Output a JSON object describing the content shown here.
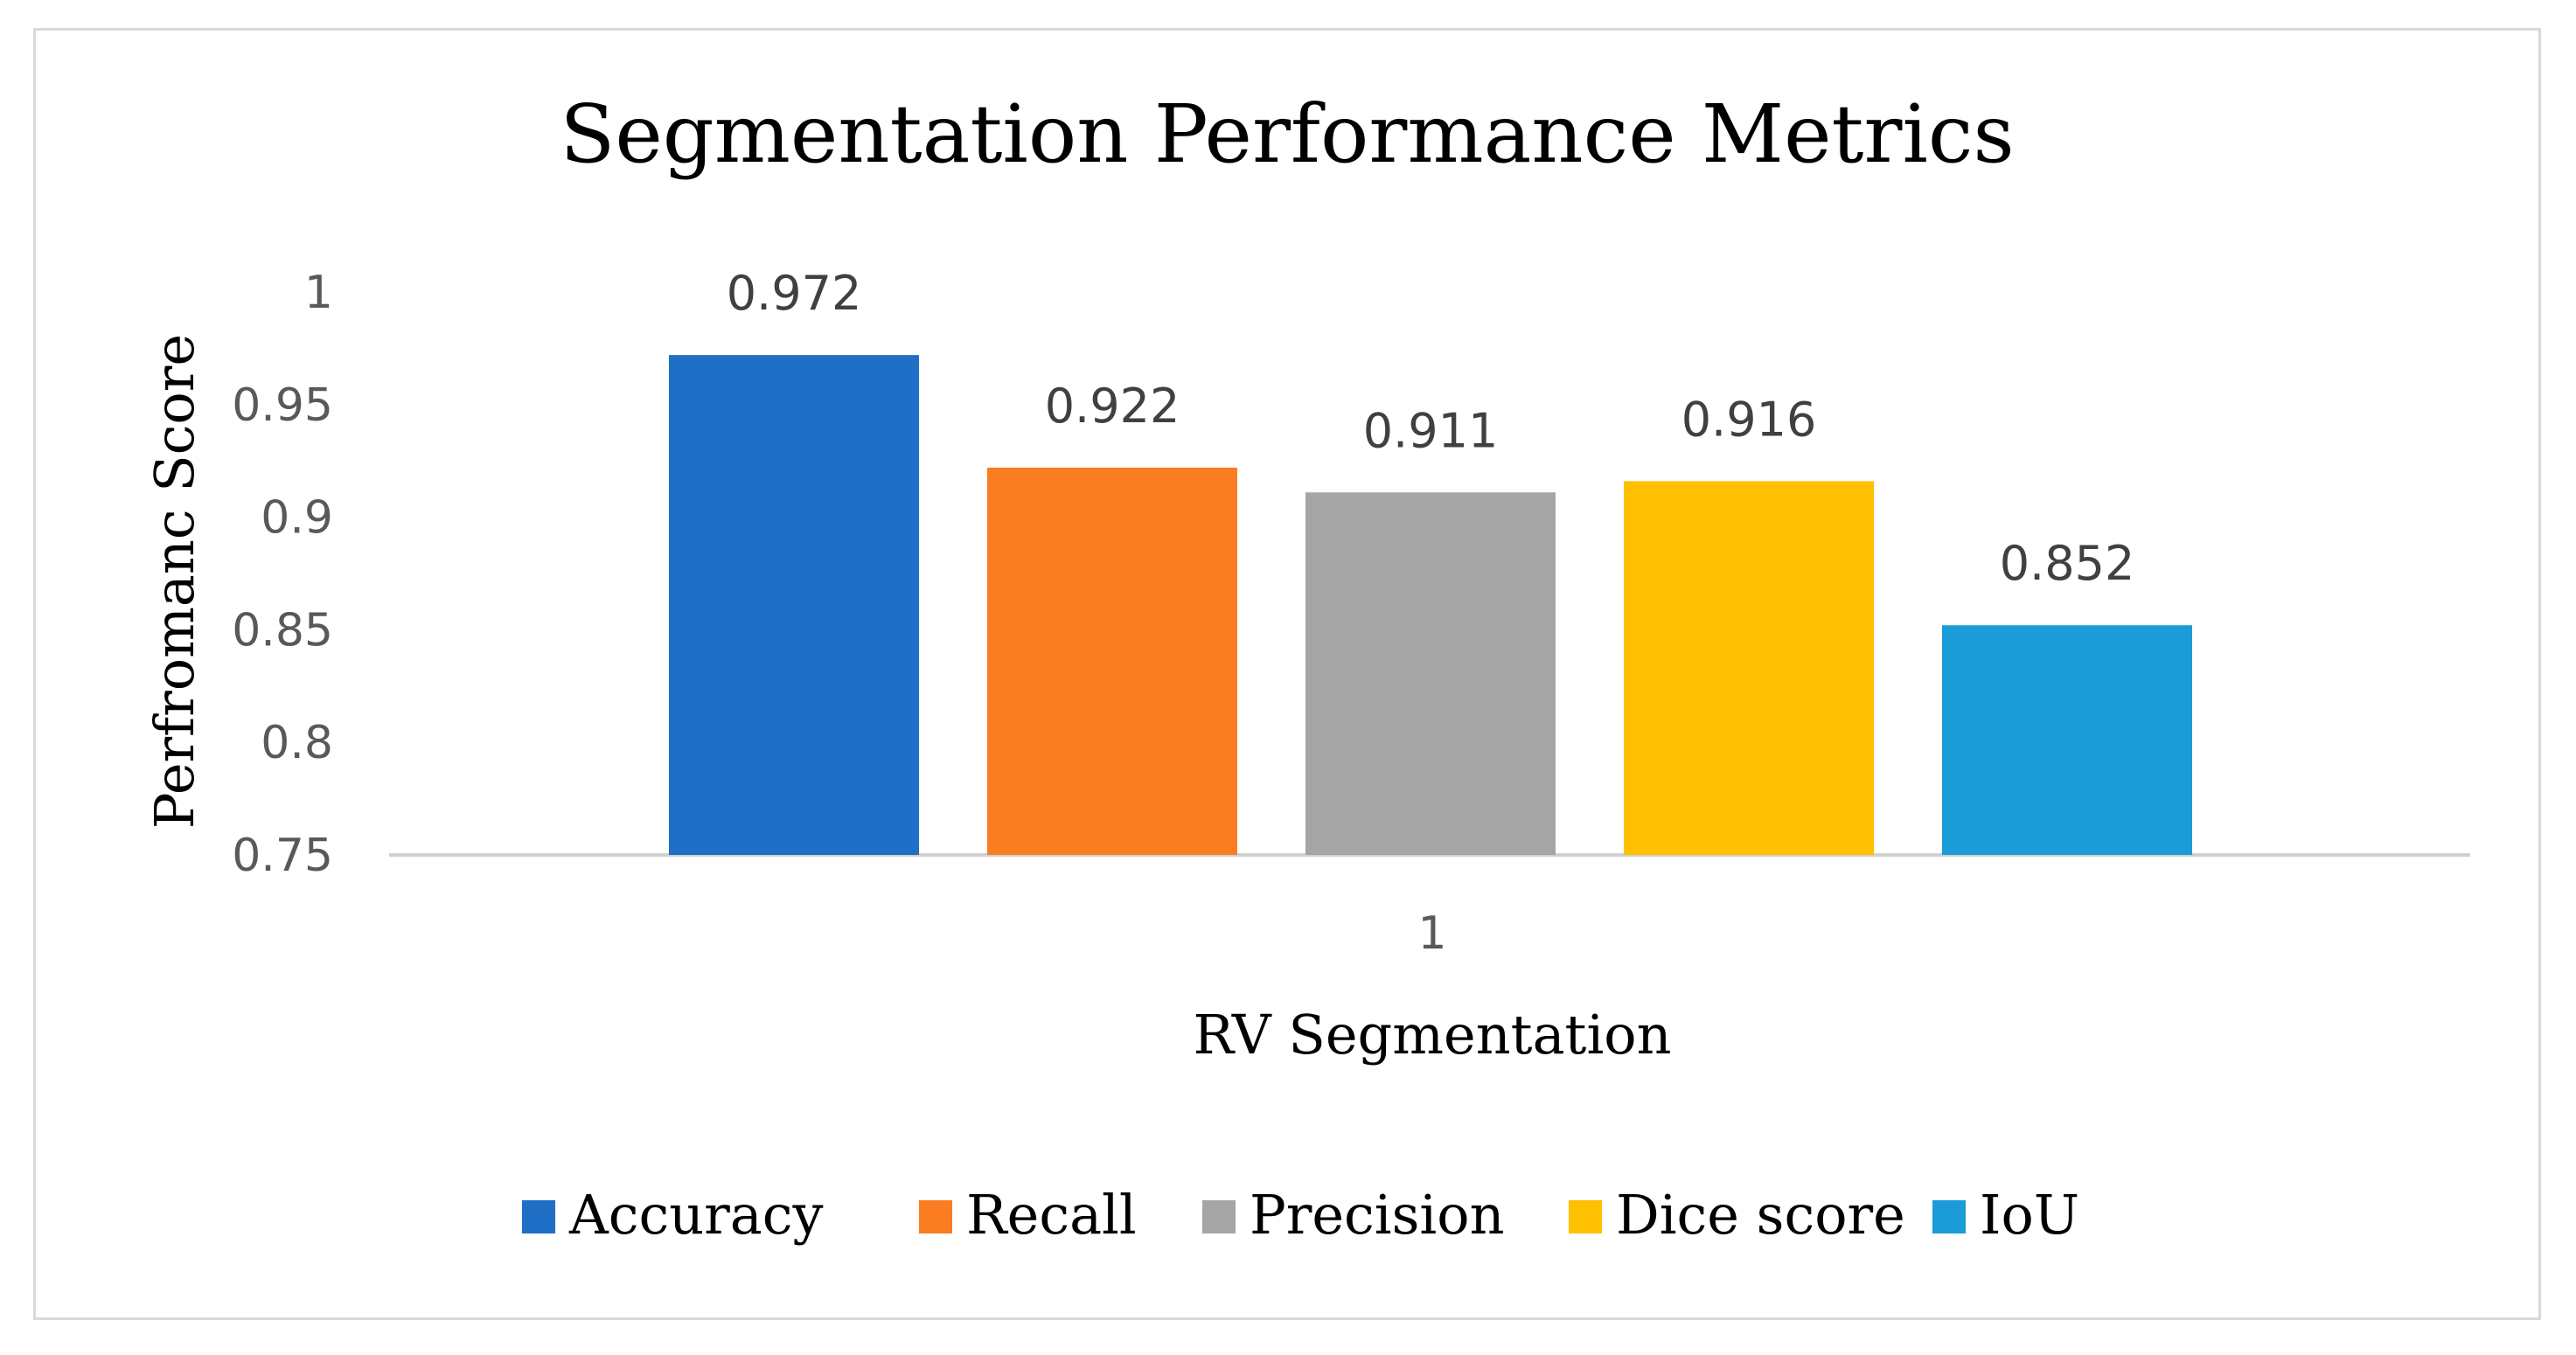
{
  "chart_data": {
    "type": "bar",
    "title": "Segmentation Performance Metrics",
    "xlabel": "RV Segmentation",
    "ylabel": "Perfromanc Score",
    "categories": [
      "1"
    ],
    "series": [
      {
        "name": "Accuracy",
        "values": [
          0.972
        ],
        "label": "0.972",
        "color": "#1f6fc7"
      },
      {
        "name": "Recall",
        "values": [
          0.922
        ],
        "label": "0.922",
        "color": "#fa7d22"
      },
      {
        "name": "Precision",
        "values": [
          0.911
        ],
        "label": "0.911",
        "color": "#a5a5a5"
      },
      {
        "name": "Dice score",
        "values": [
          0.916
        ],
        "label": "0.916",
        "color": "#fec000"
      },
      {
        "name": "IoU",
        "values": [
          0.852
        ],
        "label": "0.852",
        "color": "#1b9bd7"
      }
    ],
    "yticks": [
      0.75,
      0.8,
      0.85,
      0.9,
      0.95,
      1
    ],
    "ytick_labels": [
      "0.75",
      "0.8",
      "0.85",
      "0.9",
      "0.95",
      "1"
    ],
    "ylim": [
      0.75,
      1
    ],
    "grid": false,
    "legend_position": "bottom"
  }
}
